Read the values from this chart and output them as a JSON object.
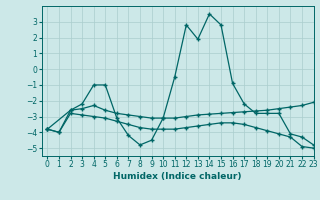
{
  "xlabel": "Humidex (Indice chaleur)",
  "xlim": [
    -0.5,
    23
  ],
  "ylim": [
    -5.5,
    4.0
  ],
  "yticks": [
    -5,
    -4,
    -3,
    -2,
    -1,
    0,
    1,
    2,
    3
  ],
  "xticks": [
    0,
    1,
    2,
    3,
    4,
    5,
    6,
    7,
    8,
    9,
    10,
    11,
    12,
    13,
    14,
    15,
    16,
    17,
    18,
    19,
    20,
    21,
    22,
    23
  ],
  "bg_color": "#cce8e8",
  "grid_color": "#aacece",
  "line_color": "#006666",
  "line1_x": [
    0,
    1,
    2,
    3,
    4,
    5,
    6,
    7,
    8,
    9,
    10,
    11,
    12,
    13,
    14,
    15,
    16,
    17,
    18,
    19,
    20,
    21,
    22,
    23
  ],
  "line1_y": [
    -3.8,
    -4.0,
    -2.6,
    -2.2,
    -1.0,
    -1.0,
    -3.1,
    -4.2,
    -4.8,
    -4.5,
    -3.1,
    -0.5,
    2.8,
    1.9,
    3.5,
    2.8,
    -0.9,
    -2.2,
    -2.8,
    -2.8,
    -2.8,
    -4.1,
    -4.3,
    -4.8
  ],
  "line2_x": [
    0,
    2,
    3,
    4,
    5,
    6,
    7,
    8,
    9,
    10,
    11,
    12,
    13,
    14,
    15,
    16,
    17,
    18,
    19,
    20,
    21,
    22,
    23
  ],
  "line2_y": [
    -3.8,
    -2.6,
    -2.5,
    -2.3,
    -2.6,
    -2.8,
    -2.9,
    -3.0,
    -3.1,
    -3.1,
    -3.1,
    -3.0,
    -2.9,
    -2.85,
    -2.8,
    -2.75,
    -2.7,
    -2.65,
    -2.6,
    -2.5,
    -2.4,
    -2.3,
    -2.1
  ],
  "line3_x": [
    0,
    1,
    2,
    3,
    4,
    5,
    6,
    7,
    8,
    9,
    10,
    11,
    12,
    13,
    14,
    15,
    16,
    17,
    18,
    19,
    20,
    21,
    22,
    23
  ],
  "line3_y": [
    -3.8,
    -4.0,
    -2.8,
    -2.9,
    -3.0,
    -3.1,
    -3.3,
    -3.5,
    -3.7,
    -3.8,
    -3.8,
    -3.8,
    -3.7,
    -3.6,
    -3.5,
    -3.4,
    -3.4,
    -3.5,
    -3.7,
    -3.9,
    -4.1,
    -4.3,
    -4.9,
    -5.0
  ]
}
